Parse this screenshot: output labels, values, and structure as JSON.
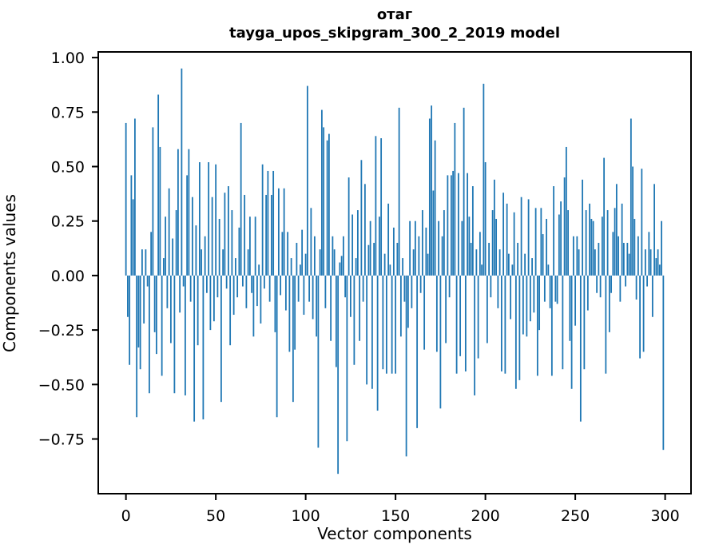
{
  "figure": {
    "title_line1": "отаг",
    "title_line2": "tayga_upos_skipgram_300_2_2019 model",
    "xlabel": "Vector components",
    "ylabel": "Components values",
    "background_color": "#ffffff",
    "text_color": "#000000"
  },
  "chart_data": {
    "type": "bar",
    "title": "отаг\ntayga_upos_skipgram_300_2_2019 model",
    "xlabel": "Vector components",
    "ylabel": "Components values",
    "bar_color": "#1f77b4",
    "axis_color": "#000000",
    "grid": false,
    "legend": null,
    "x_start": 0,
    "n_components": 300,
    "xlim": [
      -15.4,
      314.4
    ],
    "ylim": [
      -1.001,
      1.026
    ],
    "xticks": [
      {
        "value": 0,
        "label": "0"
      },
      {
        "value": 50,
        "label": "50"
      },
      {
        "value": 100,
        "label": "100"
      },
      {
        "value": 150,
        "label": "150"
      },
      {
        "value": 200,
        "label": "200"
      },
      {
        "value": 250,
        "label": "250"
      },
      {
        "value": 300,
        "label": "300"
      }
    ],
    "yticks": [
      {
        "value": 1.0,
        "label": "1.00"
      },
      {
        "value": 0.75,
        "label": "0.75"
      },
      {
        "value": 0.5,
        "label": "0.50"
      },
      {
        "value": 0.25,
        "label": "0.25"
      },
      {
        "value": 0.0,
        "label": "0.00"
      },
      {
        "value": -0.25,
        "label": "−0.25"
      },
      {
        "value": -0.5,
        "label": "−0.50"
      },
      {
        "value": -0.75,
        "label": "−0.75"
      }
    ],
    "values": [
      0.7,
      -0.19,
      -0.41,
      0.46,
      0.35,
      0.72,
      -0.65,
      -0.33,
      -0.43,
      0.12,
      -0.22,
      0.12,
      -0.05,
      -0.54,
      0.2,
      0.68,
      -0.26,
      -0.36,
      0.83,
      0.59,
      -0.46,
      0.08,
      0.27,
      -0.15,
      0.4,
      -0.31,
      0.17,
      -0.54,
      0.3,
      0.58,
      -0.17,
      0.95,
      -0.05,
      -0.55,
      0.46,
      0.58,
      -0.12,
      0.36,
      -0.67,
      0.23,
      -0.32,
      0.52,
      0.12,
      -0.66,
      0.18,
      -0.08,
      0.52,
      -0.25,
      0.36,
      -0.21,
      0.51,
      -0.1,
      0.26,
      -0.58,
      0.12,
      0.38,
      -0.06,
      0.41,
      -0.32,
      0.3,
      -0.18,
      0.08,
      -0.1,
      0.22,
      0.7,
      -0.05,
      0.37,
      -0.15,
      0.12,
      0.27,
      -0.08,
      -0.28,
      0.27,
      -0.14,
      0.05,
      -0.22,
      0.51,
      -0.06,
      0.37,
      0.48,
      -0.12,
      0.37,
      0.48,
      -0.26,
      -0.65,
      0.4,
      -0.09,
      0.2,
      0.4,
      -0.16,
      0.2,
      -0.35,
      0.08,
      -0.58,
      -0.34,
      0.15,
      -0.12,
      0.05,
      0.21,
      -0.18,
      0.1,
      0.87,
      -0.12,
      0.31,
      -0.2,
      0.18,
      -0.28,
      -0.79,
      0.12,
      0.76,
      0.68,
      -0.15,
      0.62,
      0.65,
      -0.3,
      0.18,
      0.12,
      -0.42,
      -0.91,
      0.06,
      0.09,
      0.18,
      -0.1,
      -0.76,
      0.45,
      -0.19,
      0.28,
      -0.41,
      0.08,
      0.3,
      -0.3,
      0.53,
      -0.12,
      0.42,
      -0.5,
      0.14,
      0.25,
      -0.52,
      0.15,
      0.64,
      -0.62,
      0.27,
      0.63,
      -0.43,
      0.1,
      -0.45,
      0.33,
      0.05,
      -0.45,
      0.22,
      -0.45,
      0.15,
      0.77,
      -0.28,
      0.08,
      -0.12,
      -0.83,
      -0.24,
      0.25,
      -0.15,
      0.12,
      0.25,
      -0.7,
      0.18,
      -0.08,
      0.3,
      -0.34,
      0.22,
      0.1,
      0.72,
      0.78,
      0.39,
      0.62,
      -0.35,
      0.25,
      -0.61,
      0.18,
      0.3,
      -0.31,
      0.46,
      -0.1,
      0.46,
      0.48,
      0.7,
      -0.45,
      0.47,
      -0.37,
      0.25,
      0.77,
      -0.44,
      0.47,
      0.27,
      0.15,
      0.41,
      -0.55,
      0.12,
      -0.38,
      0.2,
      0.05,
      0.88,
      0.52,
      -0.31,
      0.15,
      -0.1,
      0.3,
      0.44,
      0.26,
      -0.15,
      0.12,
      -0.44,
      0.38,
      -0.45,
      0.33,
      0.1,
      -0.2,
      0.05,
      0.29,
      -0.52,
      0.15,
      -0.48,
      0.36,
      -0.27,
      0.1,
      -0.28,
      0.35,
      -0.21,
      0.08,
      -0.17,
      0.31,
      -0.46,
      -0.25,
      0.31,
      0.19,
      -0.12,
      0.26,
      0.05,
      -0.15,
      -0.46,
      0.41,
      -0.12,
      -0.13,
      0.28,
      0.34,
      -0.43,
      0.45,
      0.59,
      0.3,
      -0.3,
      -0.52,
      0.18,
      -0.23,
      0.18,
      0.12,
      -0.67,
      0.44,
      -0.43,
      0.3,
      -0.16,
      0.33,
      0.26,
      0.25,
      0.12,
      -0.08,
      0.15,
      -0.1,
      0.27,
      0.54,
      -0.45,
      0.3,
      -0.26,
      -0.08,
      0.2,
      0.31,
      0.42,
      0.18,
      -0.12,
      0.33,
      0.15,
      -0.05,
      0.15,
      0.1,
      0.72,
      0.5,
      0.26,
      -0.11,
      0.18,
      -0.38,
      0.49,
      -0.35,
      0.12,
      -0.05,
      0.2,
      0.12,
      -0.19,
      0.42,
      0.08,
      0.12,
      0.05,
      0.25,
      -0.8
    ]
  }
}
